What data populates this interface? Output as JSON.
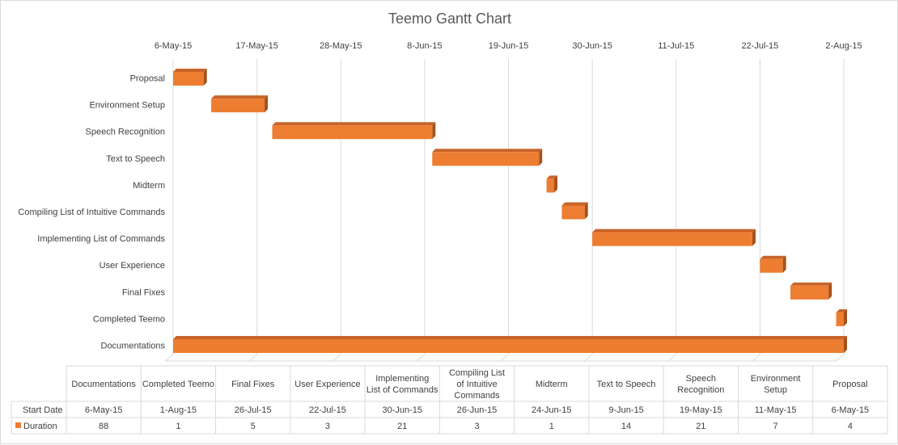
{
  "chart_data": {
    "type": "bar",
    "subtype": "gantt-3d-stacked-horizontal",
    "title": "Teemo Gantt Chart",
    "x_axis": {
      "type": "date",
      "min": "2015-05-06",
      "max": "2015-08-02",
      "position": "top",
      "tick_labels": [
        "6-May-15",
        "17-May-15",
        "28-May-15",
        "8-Jun-15",
        "19-Jun-15",
        "30-Jun-15",
        "11-Jul-15",
        "22-Jul-15",
        "2-Aug-15"
      ],
      "tick_dates": [
        "2015-05-06",
        "2015-05-17",
        "2015-05-28",
        "2015-06-08",
        "2015-06-19",
        "2015-06-30",
        "2015-07-11",
        "2015-07-22",
        "2015-08-02"
      ]
    },
    "grid": true,
    "bar_color": "#ED7D31",
    "bar_side_color": "#A4511C",
    "bar_top_color": "#C8642A",
    "categories": [
      "Proposal",
      "Environment Setup",
      "Speech Recognition",
      "Text to Speech",
      "Midterm",
      "Compiling List of Intuitive Commands",
      "Implementing List of Commands",
      "User Experience",
      "Final Fixes",
      "Completed Teemo",
      "Documentations"
    ],
    "series": [
      {
        "name": "Start Date",
        "visible": false,
        "values": [
          "2015-05-06",
          "2015-05-11",
          "2015-05-19",
          "2015-06-09",
          "2015-06-24",
          "2015-06-26",
          "2015-06-30",
          "2015-07-22",
          "2015-07-26",
          "2015-08-01",
          "2015-05-06"
        ],
        "labels": [
          "6-May-15",
          "11-May-15",
          "19-May-15",
          "9-Jun-15",
          "24-Jun-15",
          "26-Jun-15",
          "30-Jun-15",
          "22-Jul-15",
          "26-Jul-15",
          "1-Aug-15",
          "6-May-15"
        ]
      },
      {
        "name": "Duration",
        "color": "#ED7D31",
        "values": [
          4,
          7,
          21,
          14,
          1,
          3,
          21,
          3,
          5,
          1,
          88
        ]
      }
    ],
    "data_table": {
      "columns": [
        "Documentations",
        "Completed Teemo",
        "Final Fixes",
        "User Experience",
        "Implementing List of Commands",
        "Compiling List of Intuitive Commands",
        "Midterm",
        "Text to Speech",
        "Speech Recognition",
        "Environment Setup",
        "Proposal"
      ],
      "rows": [
        {
          "label": "Start Date",
          "cells": [
            "6-May-15",
            "1-Aug-15",
            "26-Jul-15",
            "22-Jul-15",
            "30-Jun-15",
            "26-Jun-15",
            "24-Jun-15",
            "9-Jun-15",
            "19-May-15",
            "11-May-15",
            "6-May-15"
          ]
        },
        {
          "label": "Duration",
          "legend_color": "#ED7D31",
          "cells": [
            "88",
            "1",
            "5",
            "3",
            "21",
            "3",
            "1",
            "14",
            "21",
            "7",
            "4"
          ]
        }
      ]
    }
  }
}
